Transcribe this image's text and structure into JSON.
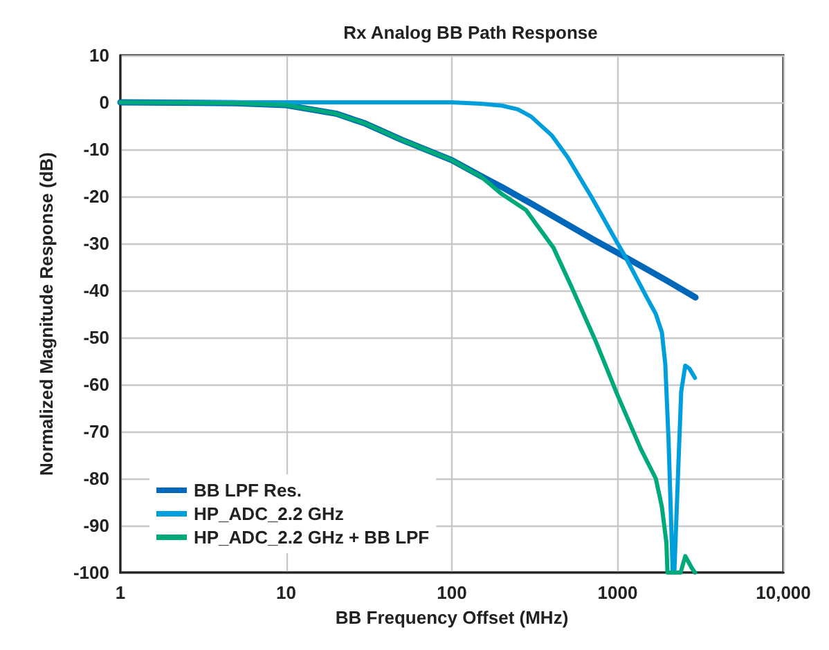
{
  "chart_data": {
    "type": "line",
    "title": "Rx Analog BB Path Response",
    "xlabel": "BB Frequency Offset (MHz)",
    "ylabel": "Normalized Magnitude Response (dB)",
    "log": "x",
    "xlim": [
      1,
      10000
    ],
    "xticks": [
      1,
      10,
      100,
      1000,
      {
        "value": 10000,
        "label": "10,000"
      }
    ],
    "ylim": [
      -100,
      10
    ],
    "yticks": [
      -100,
      -90,
      -80,
      -70,
      -60,
      -50,
      -40,
      -30,
      -20,
      -10,
      0,
      10
    ],
    "grid": true,
    "legend": "bottom left",
    "marker": "none",
    "line_style": "solid",
    "series": [
      {
        "name": "BB LPF Res.",
        "color": "#0067b9",
        "x": [
          1,
          3,
          5,
          10,
          20,
          30,
          50,
          100,
          150,
          200,
          300,
          500,
          700,
          1000,
          1500,
          2000,
          2950
        ],
        "values": [
          0,
          -0.1,
          -0.2,
          -0.6,
          -2.4,
          -4.5,
          -8,
          -12.3,
          -15.7,
          -18,
          -21.5,
          -26,
          -29,
          -32,
          -35.5,
          -38,
          -41.5
        ]
      },
      {
        "name": "HP_ADC_2.2 GHz",
        "color": "#009fdb",
        "x": [
          1,
          10,
          100,
          150,
          200,
          250,
          300,
          400,
          500,
          700,
          1000,
          1100,
          1500,
          1700,
          1850,
          1940,
          2030,
          2150,
          2200,
          2330,
          2420,
          2560,
          2710,
          2930
        ],
        "values": [
          0,
          0,
          0,
          -0.3,
          -0.7,
          -1.5,
          -3,
          -7,
          -11.7,
          -20.3,
          -30,
          -32.5,
          -41.5,
          -45,
          -48.9,
          -55.7,
          -71.8,
          -100,
          -100,
          -76.6,
          -61.5,
          -56,
          -56.6,
          -58.6
        ]
      },
      {
        "name": "HP_ADC_2.2 GHz + BB LPF",
        "color": "#00a979",
        "x": [
          1,
          3,
          5,
          10,
          20,
          30,
          50,
          100,
          150,
          200,
          280,
          410,
          530,
          740,
          1000,
          1380,
          1700,
          1850,
          1970,
          2000,
          2400,
          2560,
          2800,
          2930
        ],
        "values": [
          0,
          -0.1,
          -0.2,
          -0.6,
          -2.4,
          -4.5,
          -8,
          -12.3,
          -15.8,
          -19.5,
          -22.9,
          -30.9,
          -39.4,
          -50.9,
          -62.3,
          -73.7,
          -80,
          -86,
          -93.7,
          -100,
          -100,
          -96.5,
          -99,
          -100
        ]
      }
    ]
  }
}
